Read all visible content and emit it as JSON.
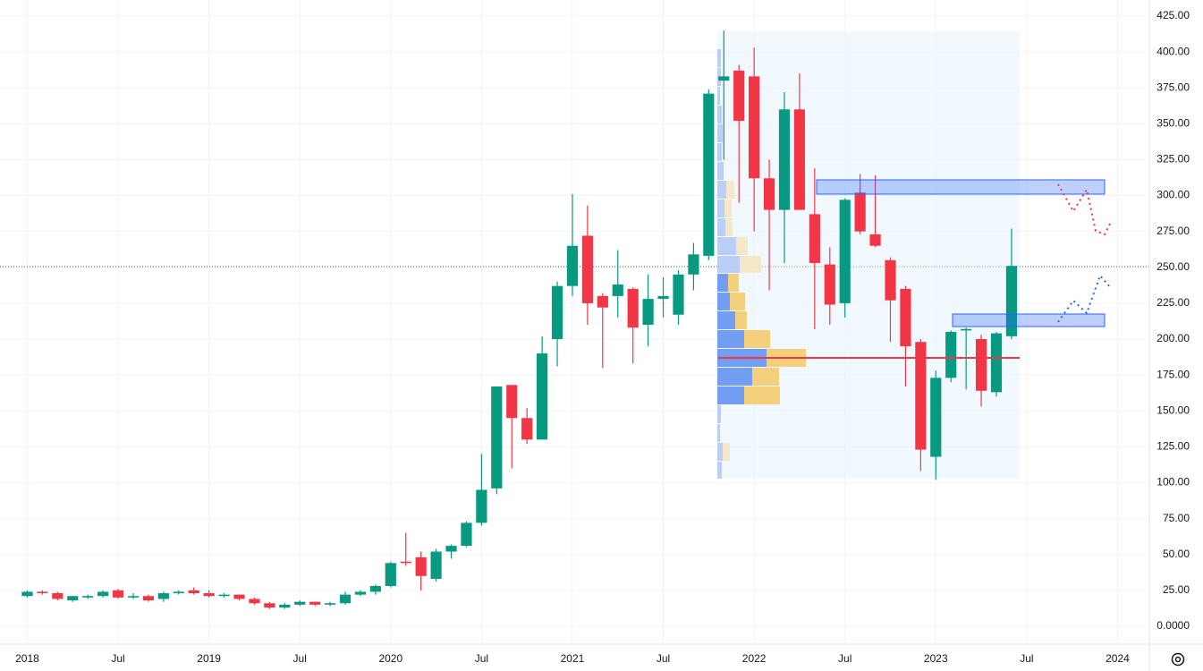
{
  "chart_data": {
    "type": "candlestick",
    "up_color": "#089981",
    "down_color": "#f23645",
    "grid": true,
    "last_price": 250.5,
    "categories": [
      "2018",
      null,
      null,
      null,
      null,
      null,
      "Jul",
      null,
      null,
      null,
      null,
      null,
      "2019",
      null,
      null,
      null,
      null,
      null,
      "Jul",
      null,
      null,
      null,
      null,
      null,
      "2020",
      null,
      null,
      null,
      null,
      null,
      "Jul",
      null,
      null,
      null,
      null,
      null,
      "2021",
      null,
      null,
      null,
      null,
      null,
      "Jul",
      null,
      null,
      null,
      null,
      null,
      "2022",
      null,
      null,
      null,
      null,
      null,
      "Jul",
      null,
      null,
      null,
      null,
      null,
      "2023",
      null,
      null,
      null,
      null,
      null
    ],
    "open": [
      21,
      24,
      23,
      18,
      20,
      21,
      25,
      20,
      21,
      19,
      23,
      25,
      23,
      21,
      22,
      19,
      16,
      13,
      15,
      17,
      15,
      16,
      22,
      24,
      28,
      45,
      48,
      33,
      52,
      56,
      72,
      96,
      168,
      145,
      130,
      200,
      237,
      272,
      230,
      230,
      235,
      210,
      228,
      217,
      245,
      258,
      380,
      387,
      383,
      312,
      290,
      360,
      287,
      252,
      225,
      302,
      273,
      255,
      235,
      198,
      118,
      173,
      206,
      200,
      163,
      202
    ],
    "high": [
      25,
      25,
      24,
      21,
      22,
      25,
      26,
      23,
      22,
      24,
      25,
      27,
      25,
      23,
      22,
      20,
      17,
      16,
      18,
      17,
      17,
      24,
      25,
      29,
      45,
      65,
      52,
      54,
      57,
      73,
      120,
      167,
      168,
      152,
      202,
      240,
      301,
      293,
      232,
      262,
      236,
      245,
      243,
      248,
      267,
      374,
      415,
      391,
      403,
      325,
      372,
      385,
      319,
      264,
      298,
      315,
      314,
      257,
      237,
      200,
      178,
      206,
      208,
      203,
      205,
      277
    ],
    "low": [
      20,
      22,
      18,
      17,
      19,
      20,
      19,
      19,
      17,
      17,
      22,
      22,
      20,
      20,
      18,
      15,
      12,
      12,
      14,
      14,
      14,
      15,
      21,
      22,
      27,
      42,
      25,
      31,
      47,
      55,
      70,
      92,
      110,
      127,
      130,
      181,
      230,
      210,
      180,
      215,
      183,
      195,
      215,
      210,
      234,
      255,
      325,
      295,
      275,
      234,
      253,
      290,
      207,
      210,
      215,
      273,
      264,
      198,
      167,
      108,
      102,
      170,
      165,
      153,
      160,
      200
    ],
    "close": [
      24,
      23,
      19,
      21,
      21,
      24,
      20,
      21,
      18,
      23,
      24,
      23,
      21,
      22,
      19,
      16,
      13,
      15,
      17,
      15,
      16,
      22,
      24,
      28,
      44,
      44,
      35,
      52,
      56,
      72,
      95,
      167,
      145,
      130,
      190,
      237,
      265,
      225,
      222,
      238,
      208,
      228,
      230,
      245,
      259,
      371,
      383,
      352,
      312,
      290,
      360,
      290,
      253,
      224,
      297,
      275,
      265,
      227,
      195,
      123,
      173,
      205,
      207,
      164,
      204,
      251
    ],
    "xlim": [
      -1.8,
      74.1
    ],
    "xticks": [
      {
        "value": 0,
        "label": "2018"
      },
      {
        "value": 6,
        "label": "Jul"
      },
      {
        "value": 12,
        "label": "2019"
      },
      {
        "value": 18,
        "label": "Jul"
      },
      {
        "value": 24,
        "label": "2020"
      },
      {
        "value": 30,
        "label": "Jul"
      },
      {
        "value": 36,
        "label": "2021"
      },
      {
        "value": 42,
        "label": "Jul"
      },
      {
        "value": 48,
        "label": "2022"
      },
      {
        "value": 54,
        "label": "Jul"
      },
      {
        "value": 60,
        "label": "2023"
      },
      {
        "value": 66,
        "label": "Jul"
      },
      {
        "value": 72,
        "label": "2024"
      }
    ],
    "ylim": [
      -12.5,
      436.2
    ],
    "yticks": [
      {
        "value": 0,
        "label": "0.0000"
      },
      {
        "value": 25,
        "label": "25.00"
      },
      {
        "value": 50,
        "label": "50.00"
      },
      {
        "value": 75,
        "label": "75.00"
      },
      {
        "value": 100,
        "label": "100.00"
      },
      {
        "value": 125,
        "label": "125.00"
      },
      {
        "value": 150,
        "label": "150.00"
      },
      {
        "value": 175,
        "label": "175.00"
      },
      {
        "value": 200,
        "label": "200.00"
      },
      {
        "value": 225,
        "label": "225.00"
      },
      {
        "value": 250,
        "label": "250.00"
      },
      {
        "value": 275,
        "label": "275.00"
      },
      {
        "value": 300,
        "label": "300.00"
      },
      {
        "value": 325,
        "label": "325.00"
      },
      {
        "value": 350,
        "label": "350.00"
      },
      {
        "value": 375,
        "label": "375.00"
      },
      {
        "value": 400,
        "label": "400.00"
      },
      {
        "value": 425,
        "label": "425.00"
      }
    ]
  }
}
